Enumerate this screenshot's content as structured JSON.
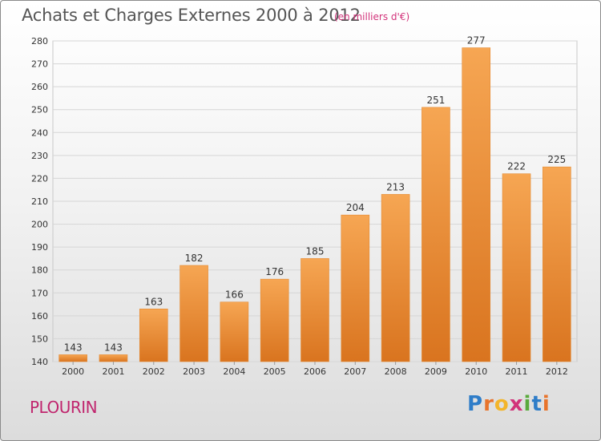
{
  "title": "Achats et Charges Externes 2000 à 2012",
  "subtitle": "(en milliers d'€)",
  "town": "PLOURIN",
  "brand": {
    "letters": [
      "P",
      "r",
      "o",
      "x",
      "i",
      "t",
      "i"
    ],
    "colors": [
      "#2f7dc8",
      "#e8742c",
      "#f3b52a",
      "#d2327a",
      "#5aaa3c",
      "#2f7dc8",
      "#e8742c"
    ]
  },
  "colors": {
    "bar": "#f0923a",
    "bar_light": "#f6a653",
    "bar_dark": "#d9741f",
    "axis_text": "#333333",
    "grid": "#d6d6d6"
  },
  "chart_data": {
    "type": "bar",
    "title": "Achats et Charges Externes 2000 à 2012",
    "subtitle": "(en milliers d'€)",
    "categories": [
      "2000",
      "2001",
      "2002",
      "2003",
      "2004",
      "2005",
      "2006",
      "2007",
      "2008",
      "2009",
      "2010",
      "2011",
      "2012"
    ],
    "values": [
      143,
      143,
      163,
      182,
      166,
      176,
      185,
      204,
      213,
      251,
      277,
      222,
      225
    ],
    "ylim": [
      140,
      280
    ],
    "yticks": [
      140,
      150,
      160,
      170,
      180,
      190,
      200,
      210,
      220,
      230,
      240,
      250,
      260,
      270,
      280
    ],
    "grid": true,
    "xlabel": "",
    "ylabel": ""
  }
}
